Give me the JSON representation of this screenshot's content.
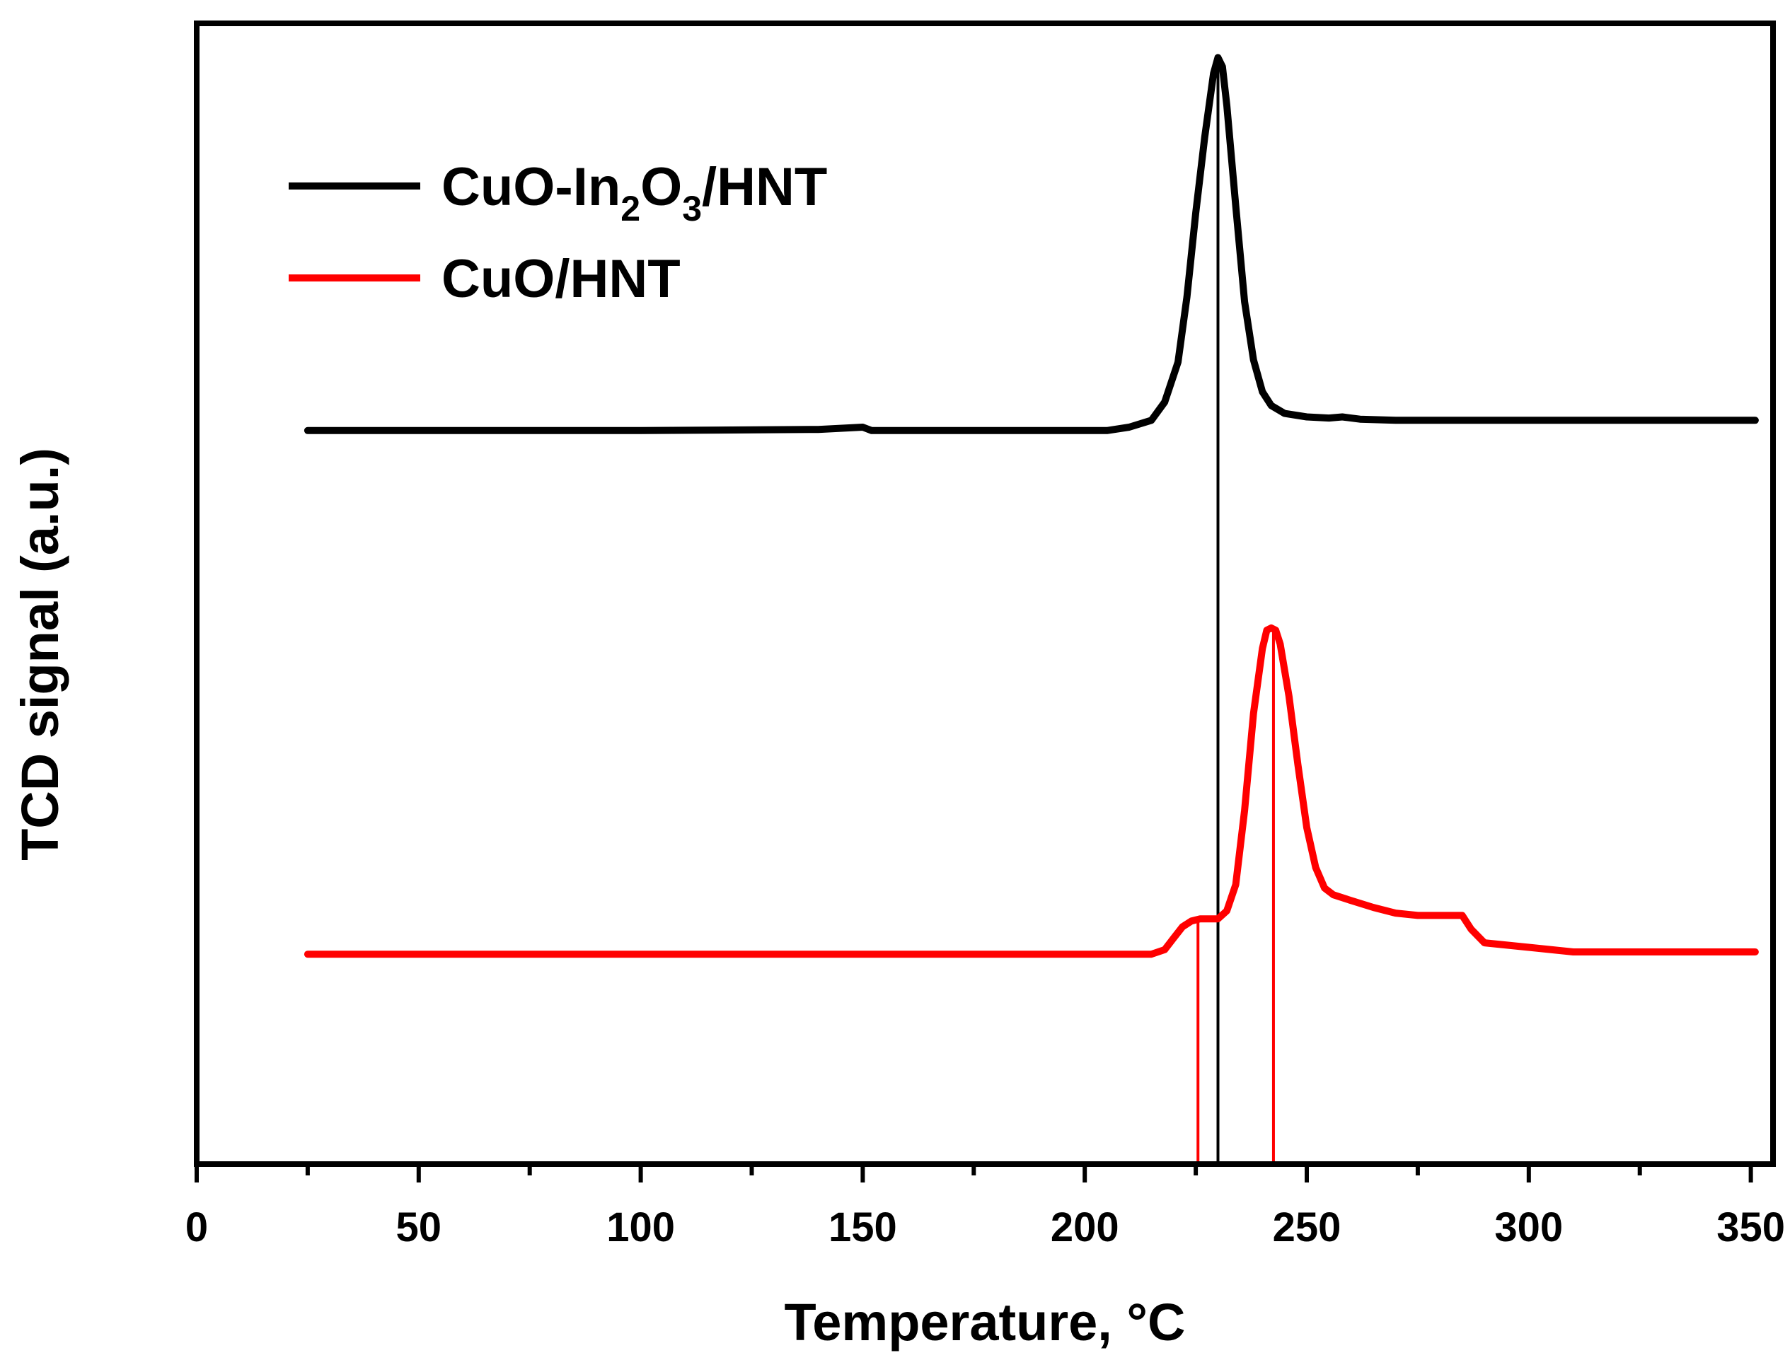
{
  "chart_data": {
    "type": "line",
    "xlabel": "Temperature, °C",
    "ylabel": "TCD signal (a.u.)",
    "xlim": [
      0,
      355
    ],
    "xticks": [
      0,
      50,
      100,
      150,
      200,
      250,
      300,
      350
    ],
    "ylim": [
      0,
      1
    ],
    "y_tick_labels": false,
    "grid": false,
    "legend_position": "top-left",
    "series": [
      {
        "name": "CuO-In2O3/HNT",
        "name_parts": [
          "CuO-In",
          "2",
          "O",
          "3",
          "/HNT"
        ],
        "color": "#000000",
        "x": [
          25,
          60,
          100,
          140,
          150,
          152,
          180,
          205,
          210,
          215,
          218,
          221,
          223,
          225,
          227,
          229,
          230,
          231,
          232,
          234,
          236,
          238,
          240,
          242,
          245,
          250,
          255,
          258,
          262,
          270,
          300,
          351
        ],
        "y": [
          0.643,
          0.643,
          0.643,
          0.644,
          0.646,
          0.643,
          0.643,
          0.643,
          0.646,
          0.652,
          0.668,
          0.703,
          0.76,
          0.834,
          0.9,
          0.956,
          0.97,
          0.962,
          0.928,
          0.84,
          0.756,
          0.705,
          0.677,
          0.665,
          0.658,
          0.655,
          0.654,
          0.655,
          0.653,
          0.652,
          0.652,
          0.652
        ]
      },
      {
        "name": "CuO/HNT",
        "color": "#ff0000",
        "x": [
          25,
          60,
          100,
          150,
          200,
          215,
          218,
          220,
          222,
          224,
          226,
          228,
          230,
          232,
          234,
          236,
          238,
          240,
          241,
          242,
          243,
          244,
          246,
          248,
          250,
          252,
          254,
          256,
          260,
          265,
          270,
          275,
          280,
          285,
          287,
          290,
          300,
          310,
          351
        ],
        "y": [
          0.184,
          0.184,
          0.184,
          0.184,
          0.184,
          0.184,
          0.188,
          0.198,
          0.208,
          0.213,
          0.215,
          0.215,
          0.215,
          0.222,
          0.245,
          0.31,
          0.395,
          0.452,
          0.468,
          0.47,
          0.468,
          0.456,
          0.41,
          0.35,
          0.295,
          0.26,
          0.242,
          0.236,
          0.231,
          0.225,
          0.22,
          0.218,
          0.218,
          0.218,
          0.206,
          0.194,
          0.19,
          0.186,
          0.186
        ]
      }
    ],
    "reference_lines": [
      {
        "x": 230,
        "color": "#000000"
      },
      {
        "x": 225.5,
        "color": "#ff0000"
      },
      {
        "x": 242.5,
        "color": "#ff0000"
      }
    ]
  }
}
